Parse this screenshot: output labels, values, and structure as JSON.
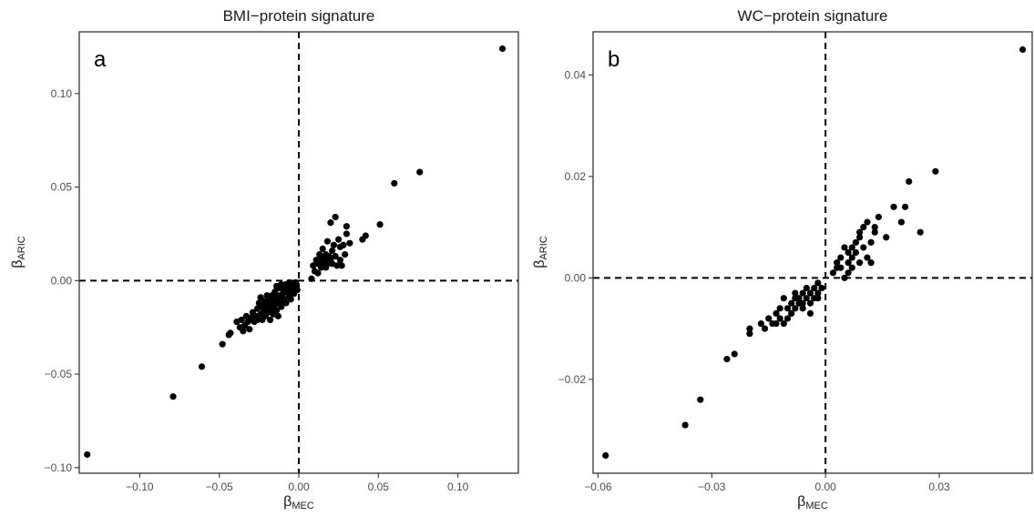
{
  "chart_data": [
    {
      "type": "scatter",
      "title": "BMI−protein signature",
      "panel_label": "a",
      "xlabel_main": "β",
      "xlabel_sub": "MEC",
      "ylabel_main": "β",
      "ylabel_sub": "ARIC",
      "xlim": [
        -0.138,
        0.138
      ],
      "ylim": [
        -0.103,
        0.133
      ],
      "xticks": [
        -0.1,
        -0.05,
        0.0,
        0.05,
        0.1
      ],
      "xtick_labels": [
        "−0.10",
        "−0.05",
        "0.00",
        "0.05",
        "0.10"
      ],
      "yticks": [
        -0.1,
        -0.05,
        0.0,
        0.05,
        0.1
      ],
      "ytick_labels": [
        "−0.10",
        "−0.05",
        "0.00",
        "0.05",
        "0.10"
      ],
      "grid": false,
      "reference_lines": {
        "x": 0,
        "y": 0
      },
      "points": [
        [
          -0.133,
          -0.093
        ],
        [
          -0.079,
          -0.062
        ],
        [
          -0.061,
          -0.046
        ],
        [
          -0.048,
          -0.034
        ],
        [
          -0.044,
          -0.029
        ],
        [
          -0.043,
          -0.028
        ],
        [
          -0.039,
          -0.022
        ],
        [
          -0.037,
          -0.025
        ],
        [
          -0.036,
          -0.021
        ],
        [
          -0.035,
          -0.027
        ],
        [
          -0.034,
          -0.024
        ],
        [
          -0.033,
          -0.019
        ],
        [
          -0.032,
          -0.022
        ],
        [
          -0.031,
          -0.026
        ],
        [
          -0.03,
          -0.02
        ],
        [
          -0.029,
          -0.017
        ],
        [
          -0.028,
          -0.022
        ],
        [
          -0.027,
          -0.019
        ],
        [
          -0.026,
          -0.015
        ],
        [
          -0.026,
          -0.021
        ],
        [
          -0.025,
          -0.012
        ],
        [
          -0.024,
          -0.018
        ],
        [
          -0.024,
          -0.009
        ],
        [
          -0.023,
          -0.014
        ],
        [
          -0.023,
          -0.021
        ],
        [
          -0.022,
          -0.011
        ],
        [
          -0.022,
          -0.016
        ],
        [
          -0.021,
          -0.013
        ],
        [
          -0.021,
          -0.019
        ],
        [
          -0.02,
          -0.008
        ],
        [
          -0.02,
          -0.014
        ],
        [
          -0.019,
          -0.017
        ],
        [
          -0.019,
          -0.01
        ],
        [
          -0.018,
          -0.012
        ],
        [
          -0.018,
          -0.021
        ],
        [
          -0.017,
          -0.015
        ],
        [
          -0.017,
          -0.008
        ],
        [
          -0.016,
          -0.011
        ],
        [
          -0.016,
          -0.018
        ],
        [
          -0.015,
          -0.013
        ],
        [
          -0.015,
          -0.006
        ],
        [
          -0.014,
          -0.016
        ],
        [
          -0.014,
          -0.009
        ],
        [
          -0.013,
          -0.012
        ],
        [
          -0.013,
          -0.019
        ],
        [
          -0.012,
          -0.004
        ],
        [
          -0.012,
          -0.008
        ],
        [
          -0.011,
          -0.011
        ],
        [
          -0.011,
          -0.014
        ],
        [
          -0.01,
          -0.003
        ],
        [
          -0.01,
          -0.007
        ],
        [
          -0.009,
          -0.01
        ],
        [
          -0.009,
          -0.005
        ],
        [
          -0.008,
          -0.002
        ],
        [
          -0.008,
          -0.012
        ],
        [
          -0.007,
          -0.006
        ],
        [
          -0.007,
          -0.003
        ],
        [
          -0.006,
          -0.008
        ],
        [
          -0.006,
          -0.001
        ],
        [
          -0.005,
          -0.004
        ],
        [
          -0.005,
          -0.01
        ],
        [
          -0.004,
          -0.006
        ],
        [
          -0.004,
          -0.002
        ],
        [
          -0.003,
          -0.004
        ],
        [
          -0.003,
          -0.007
        ],
        [
          -0.002,
          -0.003
        ],
        [
          -0.002,
          -0.001
        ],
        [
          -0.001,
          -0.005
        ],
        [
          -0.011,
          -0.002
        ],
        [
          -0.014,
          -0.003
        ],
        [
          0.008,
          0.001
        ],
        [
          0.009,
          0.008
        ],
        [
          0.01,
          0.005
        ],
        [
          0.011,
          0.011
        ],
        [
          0.012,
          0.009
        ],
        [
          0.012,
          0.004
        ],
        [
          0.013,
          0.014
        ],
        [
          0.014,
          0.007
        ],
        [
          0.014,
          0.012
        ],
        [
          0.015,
          0.009
        ],
        [
          0.015,
          0.017
        ],
        [
          0.016,
          0.011
        ],
        [
          0.017,
          0.007
        ],
        [
          0.017,
          0.014
        ],
        [
          0.018,
          0.009
        ],
        [
          0.018,
          0.021
        ],
        [
          0.019,
          0.013
        ],
        [
          0.02,
          0.011
        ],
        [
          0.02,
          0.031
        ],
        [
          0.021,
          0.016
        ],
        [
          0.021,
          0.009
        ],
        [
          0.022,
          0.019
        ],
        [
          0.023,
          0.034
        ],
        [
          0.023,
          0.013
        ],
        [
          0.024,
          0.008
        ],
        [
          0.025,
          0.022
        ],
        [
          0.026,
          0.018
        ],
        [
          0.026,
          0.011
        ],
        [
          0.027,
          0.008
        ],
        [
          0.028,
          0.019
        ],
        [
          0.029,
          0.014
        ],
        [
          0.03,
          0.029
        ],
        [
          0.03,
          0.025
        ],
        [
          0.032,
          0.02
        ],
        [
          0.04,
          0.022
        ],
        [
          0.042,
          0.024
        ],
        [
          0.051,
          0.03
        ],
        [
          0.06,
          0.052
        ],
        [
          0.076,
          0.058
        ],
        [
          0.128,
          0.124
        ]
      ]
    },
    {
      "type": "scatter",
      "title": "WC−protein signature",
      "panel_label": "b",
      "xlabel_main": "β",
      "xlabel_sub": "MEC",
      "ylabel_main": "β",
      "ylabel_sub": "ARIC",
      "xlim": [
        -0.0613,
        0.0545
      ],
      "ylim": [
        -0.0385,
        0.0485
      ],
      "xticks": [
        -0.06,
        -0.03,
        0.0,
        0.03
      ],
      "xtick_labels": [
        "−0.06",
        "−0.03",
        "0.00",
        "0.03"
      ],
      "yticks": [
        -0.02,
        0.0,
        0.02,
        0.04
      ],
      "ytick_labels": [
        "−0.02",
        "0.00",
        "0.02",
        "0.04"
      ],
      "grid": false,
      "reference_lines": {
        "x": 0,
        "y": 0
      },
      "points": [
        [
          -0.058,
          -0.035
        ],
        [
          -0.037,
          -0.029
        ],
        [
          -0.033,
          -0.024
        ],
        [
          -0.026,
          -0.016
        ],
        [
          -0.024,
          -0.015
        ],
        [
          -0.02,
          -0.01
        ],
        [
          -0.02,
          -0.011
        ],
        [
          -0.017,
          -0.009
        ],
        [
          -0.016,
          -0.01
        ],
        [
          -0.015,
          -0.008
        ],
        [
          -0.014,
          -0.009
        ],
        [
          -0.013,
          -0.007
        ],
        [
          -0.013,
          -0.009
        ],
        [
          -0.012,
          -0.006
        ],
        [
          -0.012,
          -0.008
        ],
        [
          -0.011,
          -0.004
        ],
        [
          -0.011,
          -0.009
        ],
        [
          -0.01,
          -0.006
        ],
        [
          -0.01,
          -0.008
        ],
        [
          -0.009,
          -0.005
        ],
        [
          -0.009,
          -0.007
        ],
        [
          -0.008,
          -0.003
        ],
        [
          -0.008,
          -0.006
        ],
        [
          -0.007,
          -0.004
        ],
        [
          -0.007,
          -0.005
        ],
        [
          -0.006,
          -0.003
        ],
        [
          -0.006,
          -0.006
        ],
        [
          -0.005,
          -0.004
        ],
        [
          -0.005,
          -0.002
        ],
        [
          -0.004,
          -0.005
        ],
        [
          -0.004,
          -0.003
        ],
        [
          -0.003,
          -0.002
        ],
        [
          -0.003,
          -0.004
        ],
        [
          -0.002,
          -0.003
        ],
        [
          -0.002,
          -0.001
        ],
        [
          -0.001,
          -0.002
        ],
        [
          -0.004,
          -0.007
        ],
        [
          -0.006,
          -0.005
        ],
        [
          -0.008,
          -0.004
        ],
        [
          -0.002,
          -0.004
        ],
        [
          0.002,
          0.001
        ],
        [
          0.003,
          0.003
        ],
        [
          0.003,
          0.002
        ],
        [
          0.004,
          0.004
        ],
        [
          0.004,
          0.002
        ],
        [
          0.005,
          0.006
        ],
        [
          0.005,
          0.0
        ],
        [
          0.006,
          0.003
        ],
        [
          0.006,
          0.005
        ],
        [
          0.006,
          0.001
        ],
        [
          0.007,
          0.006
        ],
        [
          0.007,
          0.004
        ],
        [
          0.007,
          0.002
        ],
        [
          0.008,
          0.007
        ],
        [
          0.008,
          0.005
        ],
        [
          0.009,
          0.008
        ],
        [
          0.009,
          0.003
        ],
        [
          0.009,
          0.009
        ],
        [
          0.01,
          0.006
        ],
        [
          0.01,
          0.01
        ],
        [
          0.011,
          0.011
        ],
        [
          0.011,
          0.004
        ],
        [
          0.012,
          0.007
        ],
        [
          0.012,
          0.003
        ],
        [
          0.013,
          0.009
        ],
        [
          0.013,
          0.01
        ],
        [
          0.014,
          0.012
        ],
        [
          0.016,
          0.008
        ],
        [
          0.018,
          0.014
        ],
        [
          0.02,
          0.011
        ],
        [
          0.021,
          0.014
        ],
        [
          0.022,
          0.019
        ],
        [
          0.025,
          0.009
        ],
        [
          0.029,
          0.021
        ],
        [
          0.052,
          0.045
        ]
      ]
    }
  ]
}
